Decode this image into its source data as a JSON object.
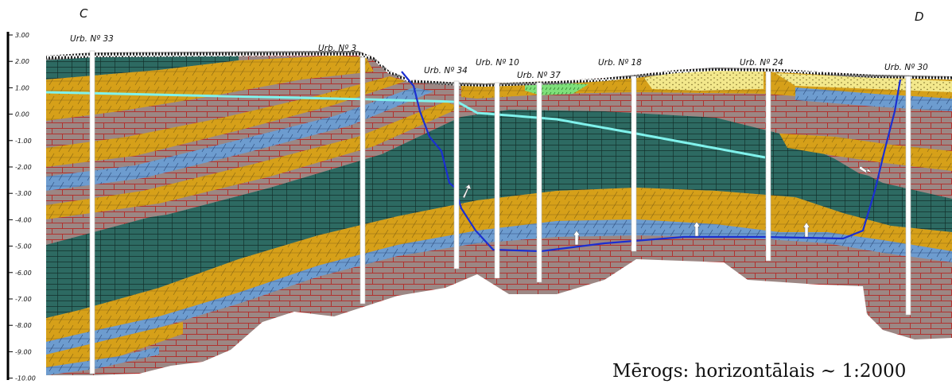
{
  "section": {
    "start_label": "C",
    "end_label": "D",
    "scale_text": "Mērogs: horizontālais ~ 1:2000"
  },
  "elevation_axis": {
    "ticks": [
      "3.00",
      "2.00",
      "1.00",
      "0.00",
      "-1.00",
      "-2.00",
      "-3.00",
      "-4.00",
      "-5.00",
      "-6.00",
      "-7.00",
      "-8.00",
      "-9.00",
      "-10.00"
    ]
  },
  "boreholes": [
    {
      "id": "b33",
      "label": "Urb. Nº 33"
    },
    {
      "id": "b3",
      "label": "Urb. Nº 3"
    },
    {
      "id": "b34",
      "label": "Urb. Nº 34"
    },
    {
      "id": "b10",
      "label": "Urb. Nº 10"
    },
    {
      "id": "b37",
      "label": "Urb. Nº 37"
    },
    {
      "id": "b18",
      "label": "Urb. Nº 18"
    },
    {
      "id": "b24",
      "label": "Urb. Nº 24"
    },
    {
      "id": "b30",
      "label": "Urb. Nº 30"
    }
  ],
  "colors": {
    "topsoil": "#1a1a1a",
    "sand": "#f3e88c",
    "peat": "#7ee07a",
    "clay": "#9c8784",
    "brick": "#b1322f",
    "sandstone": "#d6a019",
    "dolomite": "#6d9ccf",
    "marl": "#2d6a62",
    "groundwater": "#80f2ec",
    "piezometric": "#1b2fd1"
  }
}
